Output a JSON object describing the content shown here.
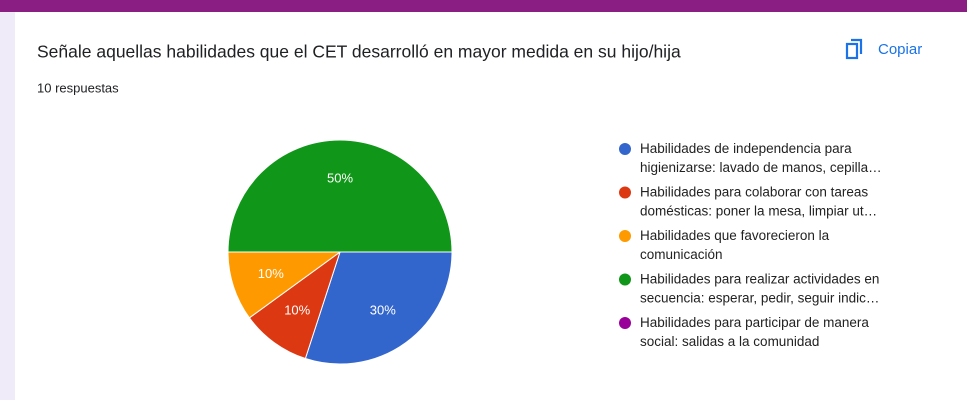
{
  "header": {
    "title": "Señale aquellas habilidades que el CET desarrolló en mayor medida en su hijo/hija",
    "subtitle": "10 respuestas",
    "copy_button": "Copiar"
  },
  "chart_data": {
    "type": "pie",
    "categories": [
      "Habilidades de independencia para higienizarse: lavado de manos, cepilla…",
      "Habilidades para colaborar con tareas domésticas: poner la mesa, limpiar ut…",
      "Habilidades que favorecieron la comunicación",
      "Habilidades para realizar actividades en secuencia: esperar, pedir, seguir indic…",
      "Habilidades para participar de manera social: salidas a la comunidad"
    ],
    "values": [
      30,
      10,
      10,
      50,
      0
    ],
    "value_labels": [
      "30%",
      "10%",
      "10%",
      "50%",
      null
    ],
    "colors": [
      "#3366cc",
      "#dc3912",
      "#ff9900",
      "#109618",
      "#990099"
    ],
    "legend": "right"
  }
}
